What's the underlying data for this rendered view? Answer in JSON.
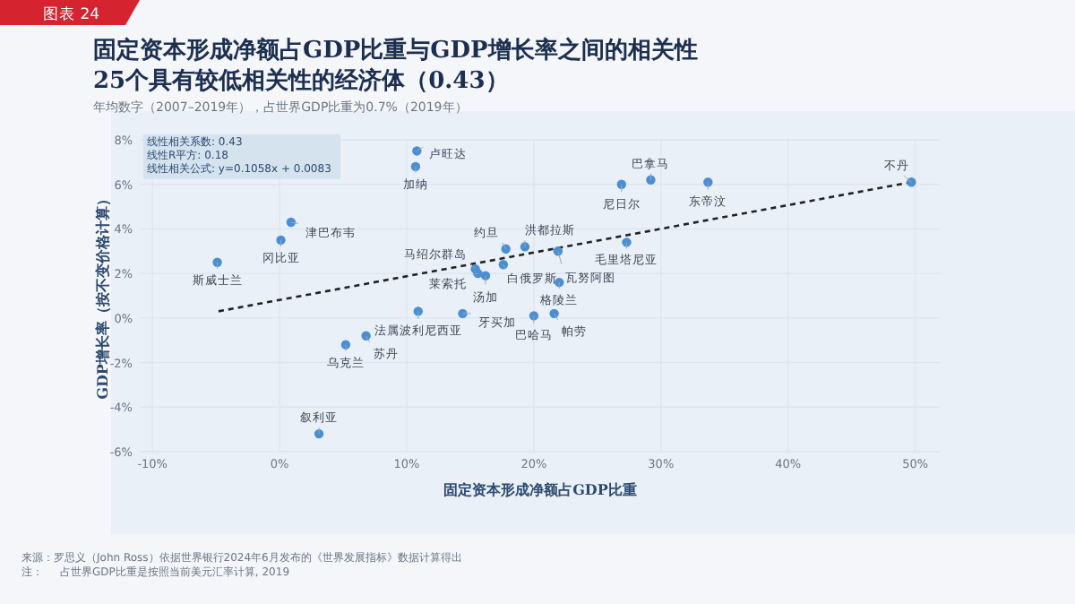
{
  "chart_data": {
    "type": "scatter",
    "title": "固定资本形成净额占GDP比重与GDP增长率之间的相关性",
    "subtitle": "25个具有较低相关性的经济体（0.43）",
    "xlabel": "固定资本形成净额占GDP比重",
    "ylabel": "GDP增长率（按不变价格计算）",
    "xlim": [
      -11,
      52
    ],
    "ylim": [
      -6,
      8
    ],
    "xticks": [
      {
        "value": -10,
        "label": "-10%"
      },
      {
        "value": 0,
        "label": "0%"
      },
      {
        "value": 10,
        "label": "10%"
      },
      {
        "value": 20,
        "label": "20%"
      },
      {
        "value": 30,
        "label": "30%"
      },
      {
        "value": 40,
        "label": "40%"
      },
      {
        "value": 50,
        "label": "50%"
      }
    ],
    "yticks": [
      {
        "value": -6,
        "label": "-6%"
      },
      {
        "value": -4,
        "label": "-4%"
      },
      {
        "value": -2,
        "label": "-2%"
      },
      {
        "value": 0,
        "label": "0%"
      },
      {
        "value": 2,
        "label": "2%"
      },
      {
        "value": 4,
        "label": "4%"
      },
      {
        "value": 6,
        "label": "6%"
      },
      {
        "value": 8,
        "label": "8%"
      }
    ],
    "grid": true,
    "series": [
      {
        "marker": "circle",
        "color": "#4a8fd1",
        "x": [
          10.8,
          10.7,
          0.9,
          0.1,
          -4.9,
          5.2,
          6.8,
          10.9,
          3.1,
          14.4,
          20.0,
          21.6,
          22.0,
          15.4,
          15.6,
          16.2,
          17.6,
          17.8,
          19.3,
          21.9,
          27.3,
          26.9,
          29.2,
          33.7,
          49.7
        ],
        "values": [
          7.5,
          6.8,
          4.3,
          3.5,
          2.5,
          -1.2,
          -0.8,
          0.3,
          -5.2,
          0.2,
          0.1,
          0.2,
          1.6,
          2.2,
          2.0,
          1.9,
          2.4,
          3.1,
          3.2,
          3.0,
          3.4,
          6.0,
          6.2,
          6.1,
          6.1
        ]
      },
      {
        "type": "line",
        "color": "#222222",
        "line_style": "dashed",
        "x": [
          -4.8,
          49.7
        ],
        "values": [
          0.3,
          6.1
        ]
      }
    ],
    "annotations": [
      "图表 24",
      "年均数字（2007–2019年），占世界GDP比重为0.7%（2019年）",
      "线性相关系数: 0.43",
      "线性R平方: 0.18",
      "线性相关公式: y=0.1058x + 0.0083",
      "来源：罗思义（John Ross）依据世界银行2024年6月发布的《世界发展指标》数据计算得出",
      "注：     占世界GDP比重是按照当前美元汇率计算, 2019",
      {
        "text": "卢旺达",
        "x": 10.8,
        "y": 7.5
      },
      {
        "text": "加纳",
        "x": 10.7,
        "y": 6.8
      },
      {
        "text": "津巴布韦",
        "x": 0.9,
        "y": 4.3
      },
      {
        "text": "冈比亚",
        "x": 0.1,
        "y": 3.5
      },
      {
        "text": "斯威士兰",
        "x": -4.9,
        "y": 2.5
      },
      {
        "text": "乌克兰",
        "x": 5.2,
        "y": -1.2
      },
      {
        "text": "苏丹",
        "x": 6.8,
        "y": -0.8
      },
      {
        "text": "法属波利尼西亚",
        "x": 10.9,
        "y": 0.3
      },
      {
        "text": "叙利亚",
        "x": 3.1,
        "y": -5.2
      },
      {
        "text": "牙买加",
        "x": 14.4,
        "y": 0.2
      },
      {
        "text": "巴哈马",
        "x": 20.0,
        "y": 0.1
      },
      {
        "text": "帕劳",
        "x": 21.6,
        "y": 0.2
      },
      {
        "text": "格陵兰",
        "x": 22.0,
        "y": 1.6
      },
      {
        "text": "马绍尔群岛",
        "x": 15.4,
        "y": 2.2
      },
      {
        "text": "莱索托",
        "x": 15.6,
        "y": 2.0
      },
      {
        "text": "汤加",
        "x": 16.2,
        "y": 1.9
      },
      {
        "text": "白俄罗斯",
        "x": 17.6,
        "y": 2.4
      },
      {
        "text": "约旦",
        "x": 17.8,
        "y": 3.1
      },
      {
        "text": "洪都拉斯",
        "x": 19.3,
        "y": 3.2
      },
      {
        "text": "瓦努阿图",
        "x": 21.9,
        "y": 3.0
      },
      {
        "text": "毛里塔尼亚",
        "x": 27.3,
        "y": 3.4
      },
      {
        "text": "尼日尔",
        "x": 26.9,
        "y": 6.0
      },
      {
        "text": "巴拿马",
        "x": 29.2,
        "y": 6.2
      },
      {
        "text": "东帝汶",
        "x": 33.7,
        "y": 6.1
      },
      {
        "text": "不丹",
        "x": 49.7,
        "y": 6.1
      }
    ]
  }
}
